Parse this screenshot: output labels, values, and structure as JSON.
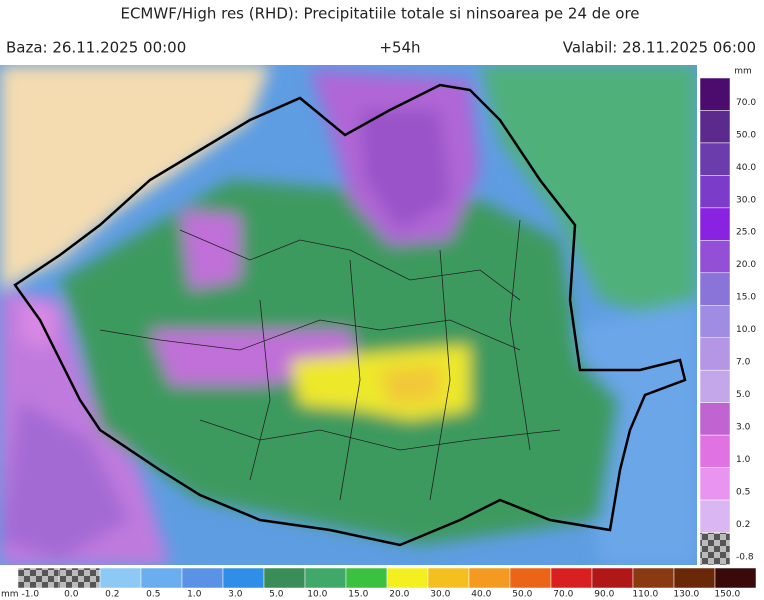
{
  "header": {
    "title": "ECMWF/High res (RHD): Precipitatiile totale si ninsoarea pe 24 de ore",
    "base": "Baza: 26.11.2025 00:00",
    "step": "+54h",
    "valid": "Valabil: 28.11.2025 06:00"
  },
  "right_legend": {
    "unit": "mm",
    "labels": [
      "70.0",
      "50.0",
      "40.0",
      "30.0",
      "25.0",
      "20.0",
      "15.0",
      "10.0",
      "7.0",
      "5.0",
      "3.0",
      "1.0",
      "0.5",
      "0.2",
      "-0.8"
    ],
    "colors": [
      "#4b0c6e",
      "#5b2a8c",
      "#6b3cab",
      "#7a3cc9",
      "#8a22e2",
      "#9350d6",
      "#8a74d8",
      "#a08ce2",
      "#b496e4",
      "#c4a6ea",
      "#c064d2",
      "#e072e2",
      "#ea94f2",
      "#dab6f2",
      "checker"
    ]
  },
  "bottom_legend": {
    "unit": "mm",
    "labels": [
      "-1.0",
      "0.0",
      "0.2",
      "0.5",
      "1.0",
      "3.0",
      "5.0",
      "10.0",
      "15.0",
      "20.0",
      "30.0",
      "40.0",
      "50.0",
      "70.0",
      "90.0",
      "110.0",
      "130.0",
      "150.0"
    ],
    "colors": [
      "checker",
      "checker",
      "#8ec8f4",
      "#6aaef0",
      "#5a92e6",
      "#2f8ee8",
      "#3a8c58",
      "#40a868",
      "#3cc040",
      "#f4f020",
      "#f4c020",
      "#f49a20",
      "#ec6418",
      "#d82020",
      "#b01818",
      "#8a3a10",
      "#6a2808",
      "#3a0a0a"
    ]
  }
}
